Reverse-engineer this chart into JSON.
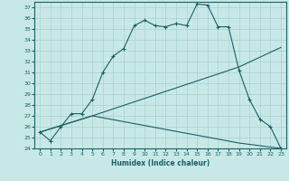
{
  "xlabel": "Humidex (Indice chaleur)",
  "background_color": "#c8e8e8",
  "line_color": "#1a6060",
  "grid_color": "#a8d0d0",
  "xlim": [
    -0.5,
    23.5
  ],
  "ylim": [
    24,
    37.5
  ],
  "xticks": [
    0,
    1,
    2,
    3,
    4,
    5,
    6,
    7,
    8,
    9,
    10,
    11,
    12,
    13,
    14,
    15,
    16,
    17,
    18,
    19,
    20,
    21,
    22,
    23
  ],
  "yticks": [
    24,
    25,
    26,
    27,
    28,
    29,
    30,
    31,
    32,
    33,
    34,
    35,
    36,
    37
  ],
  "line1_x": [
    0,
    1,
    2,
    3,
    4,
    5,
    6,
    7,
    8,
    9,
    10,
    11,
    12,
    13,
    14,
    15,
    16,
    17,
    18,
    19,
    20,
    21,
    22,
    23
  ],
  "line1_y": [
    25.5,
    24.7,
    26.0,
    27.2,
    27.2,
    28.5,
    31.0,
    32.5,
    33.2,
    35.3,
    35.8,
    35.3,
    35.2,
    35.5,
    35.3,
    37.3,
    37.2,
    35.2,
    35.2,
    31.2,
    28.5,
    26.7,
    26.0,
    24.0
  ],
  "line2_x": [
    0,
    5,
    19,
    23
  ],
  "line2_y": [
    25.5,
    27.0,
    24.5,
    24.0
  ],
  "line3_x": [
    0,
    5,
    19,
    23
  ],
  "line3_y": [
    25.5,
    27.0,
    31.5,
    33.3
  ]
}
